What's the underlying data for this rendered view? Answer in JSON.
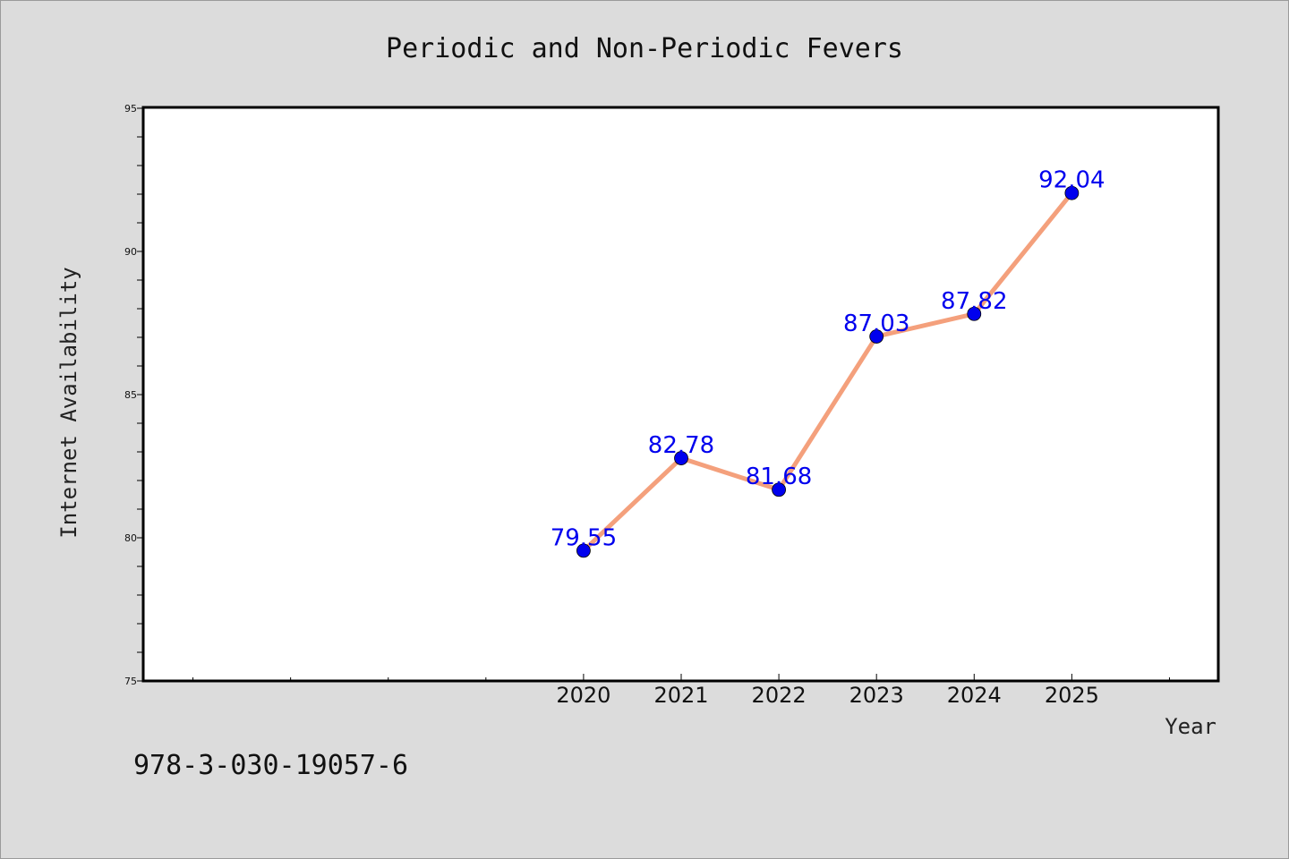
{
  "chart_data": {
    "type": "line",
    "title": "Periodic and Non-Periodic Fevers",
    "xlabel": "Year",
    "ylabel": "Internet Availability",
    "categories": [
      "2020",
      "2021",
      "2022",
      "2023",
      "2024",
      "2025"
    ],
    "x": [
      2020,
      2021,
      2022,
      2023,
      2024,
      2025
    ],
    "values": [
      79.55,
      82.78,
      81.68,
      87.03,
      87.82,
      92.04
    ],
    "data_labels": [
      "79.55",
      "82.78",
      "81.68",
      "87.03",
      "87.82",
      "92.04"
    ],
    "xlim": [
      2015.5,
      2026.5
    ],
    "ylim": [
      75,
      95
    ],
    "yticks": [
      "75",
      "80",
      "85",
      "90",
      "95"
    ],
    "grid": false,
    "legend": "none",
    "colors": {
      "line": "#f4a07c",
      "marker": "#0000ee",
      "label": "#0000ee",
      "background": "#dcdcdc",
      "plot_area": "#ffffff"
    }
  },
  "footer": {
    "isbn": "978-3-030-19057-6"
  }
}
